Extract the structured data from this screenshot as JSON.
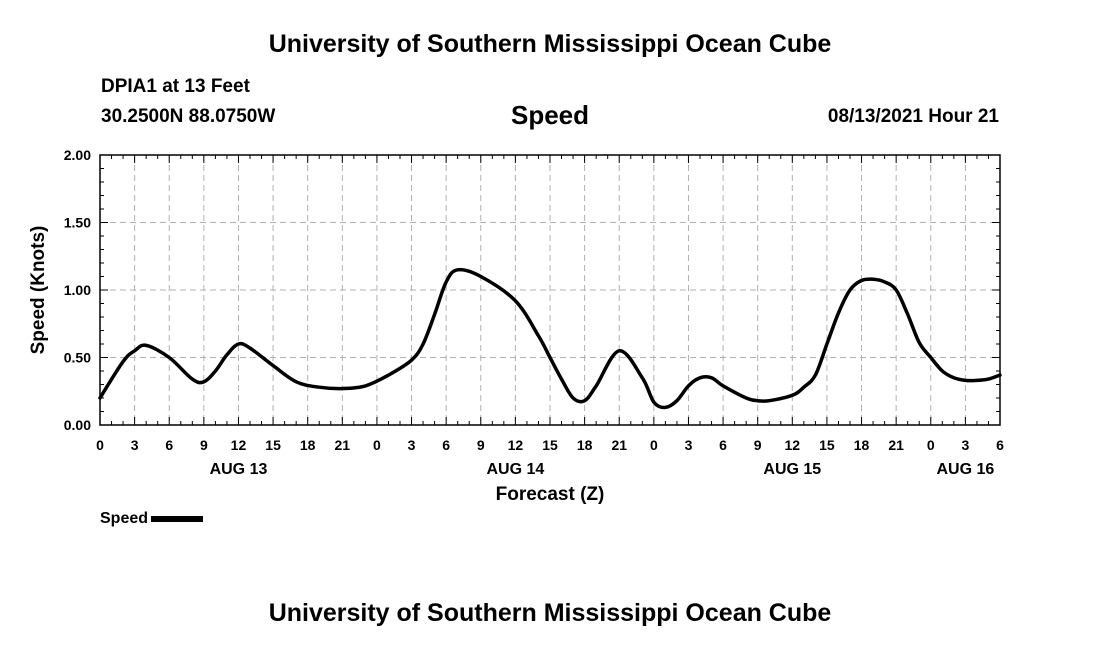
{
  "header": {
    "org_title": "University of Southern Mississippi Ocean Cube",
    "station": "DPIA1 at 13 Feet",
    "coords": "30.2500N  88.0750W",
    "plot_title": "Speed",
    "datetime": "08/13/2021 Hour 21"
  },
  "footer": {
    "org_title": "University of Southern Mississippi Ocean Cube"
  },
  "legend": {
    "label": "Speed"
  },
  "chart_data": {
    "type": "line",
    "title": "Speed",
    "xlabel": "Forecast (Z)",
    "ylabel": "Speed (Knots)",
    "xlim": [
      0,
      78
    ],
    "ylim": [
      0,
      2.0
    ],
    "y_ticks": [
      "0.00",
      "0.50",
      "1.00",
      "1.50",
      "2.00"
    ],
    "x_ticks": [
      {
        "hour": 0,
        "label": "0"
      },
      {
        "hour": 3,
        "label": "3"
      },
      {
        "hour": 6,
        "label": "6"
      },
      {
        "hour": 9,
        "label": "9"
      },
      {
        "hour": 12,
        "label": "12"
      },
      {
        "hour": 15,
        "label": "15"
      },
      {
        "hour": 18,
        "label": "18"
      },
      {
        "hour": 21,
        "label": "21"
      },
      {
        "hour": 24,
        "label": "0"
      },
      {
        "hour": 27,
        "label": "3"
      },
      {
        "hour": 30,
        "label": "6"
      },
      {
        "hour": 33,
        "label": "9"
      },
      {
        "hour": 36,
        "label": "12"
      },
      {
        "hour": 39,
        "label": "15"
      },
      {
        "hour": 42,
        "label": "18"
      },
      {
        "hour": 45,
        "label": "21"
      },
      {
        "hour": 48,
        "label": "0"
      },
      {
        "hour": 51,
        "label": "3"
      },
      {
        "hour": 54,
        "label": "6"
      },
      {
        "hour": 57,
        "label": "9"
      },
      {
        "hour": 60,
        "label": "12"
      },
      {
        "hour": 63,
        "label": "15"
      },
      {
        "hour": 66,
        "label": "18"
      },
      {
        "hour": 69,
        "label": "21"
      },
      {
        "hour": 72,
        "label": "0"
      },
      {
        "hour": 75,
        "label": "3"
      },
      {
        "hour": 78,
        "label": "6"
      }
    ],
    "date_labels": [
      {
        "hour": 12,
        "label": "AUG 13"
      },
      {
        "hour": 36,
        "label": "AUG 14"
      },
      {
        "hour": 60,
        "label": "AUG 15"
      },
      {
        "hour": 75,
        "label": "AUG 16"
      }
    ],
    "grid": true,
    "series": [
      {
        "name": "Speed",
        "color": "#000000",
        "x": [
          0,
          2,
          3,
          4,
          6,
          8,
          9,
          10,
          11,
          12,
          13,
          15,
          17,
          19,
          21,
          23,
          25,
          27,
          28,
          29,
          30,
          31,
          33,
          36,
          38,
          39,
          40,
          41,
          42,
          43,
          45,
          47,
          48,
          49,
          50,
          51,
          52,
          53,
          54,
          56,
          57,
          58,
          60,
          61,
          62,
          63,
          64,
          65,
          66,
          67,
          68,
          69,
          70,
          71,
          72,
          73,
          74,
          75,
          76,
          77,
          78
        ],
        "y": [
          0.2,
          0.47,
          0.55,
          0.59,
          0.5,
          0.34,
          0.32,
          0.4,
          0.52,
          0.6,
          0.57,
          0.44,
          0.32,
          0.28,
          0.27,
          0.29,
          0.37,
          0.48,
          0.6,
          0.82,
          1.06,
          1.15,
          1.1,
          0.92,
          0.66,
          0.5,
          0.34,
          0.2,
          0.18,
          0.29,
          0.55,
          0.35,
          0.17,
          0.13,
          0.18,
          0.29,
          0.35,
          0.35,
          0.29,
          0.2,
          0.18,
          0.18,
          0.22,
          0.28,
          0.37,
          0.6,
          0.83,
          1.0,
          1.07,
          1.08,
          1.06,
          1.0,
          0.82,
          0.61,
          0.5,
          0.4,
          0.35,
          0.33,
          0.33,
          0.34,
          0.37
        ]
      }
    ]
  }
}
